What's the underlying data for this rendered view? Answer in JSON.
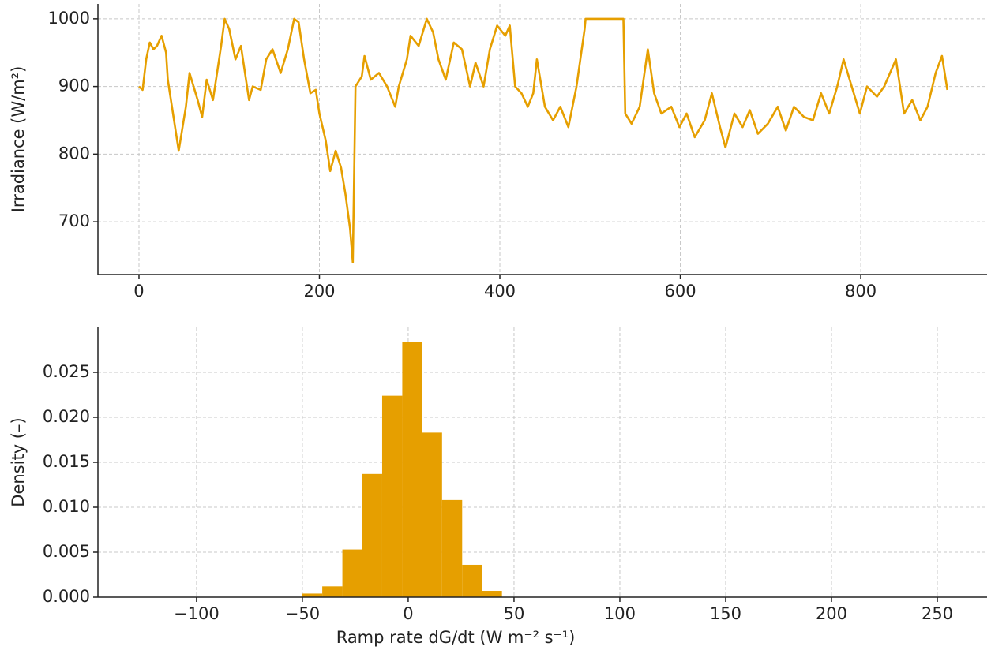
{
  "chart_data": [
    {
      "type": "line",
      "color": "#E69F00",
      "grid": true,
      "ylabel": "Irradiance (W/m²)",
      "xlim": [
        -45.5,
        940
      ],
      "ylim": [
        622,
        1022
      ],
      "xticks": [
        0,
        200,
        400,
        600,
        800
      ],
      "yticks": [
        700,
        800,
        900,
        1000
      ],
      "x": [
        0,
        4,
        8,
        12,
        16,
        20,
        25,
        30,
        32,
        44,
        52,
        56,
        65,
        70,
        75,
        82,
        91,
        95,
        100,
        107,
        113,
        122,
        126,
        135,
        141,
        148,
        157,
        165,
        172,
        177,
        183,
        190,
        196,
        200,
        207,
        212,
        218,
        224,
        229,
        234,
        237,
        240,
        247,
        250,
        257,
        266,
        275,
        284,
        288,
        297,
        301,
        310,
        319,
        326,
        332,
        340,
        349,
        358,
        367,
        373,
        382,
        389,
        397,
        406,
        411,
        417,
        424,
        431,
        437,
        441,
        450,
        459,
        467,
        476,
        485,
        494,
        495,
        537,
        539,
        546,
        555,
        564,
        571,
        579,
        590,
        599,
        607,
        616,
        627,
        635,
        644,
        650,
        660,
        669,
        677,
        686,
        697,
        708,
        717,
        726,
        737,
        747,
        756,
        765,
        774,
        781,
        790,
        799,
        807,
        818,
        826,
        839,
        848,
        857,
        866,
        874,
        883,
        890,
        896
      ],
      "values": [
        900,
        895,
        940,
        965,
        955,
        960,
        975,
        950,
        910,
        805,
        870,
        920,
        880,
        855,
        910,
        880,
        960,
        1000,
        985,
        940,
        960,
        880,
        900,
        895,
        940,
        955,
        920,
        955,
        1000,
        995,
        940,
        890,
        895,
        860,
        820,
        775,
        805,
        780,
        740,
        690,
        640,
        900,
        915,
        945,
        910,
        920,
        900,
        870,
        900,
        940,
        975,
        960,
        1000,
        980,
        940,
        910,
        965,
        955,
        900,
        935,
        900,
        955,
        990,
        975,
        990,
        900,
        890,
        870,
        890,
        940,
        870,
        850,
        870,
        840,
        900,
        985,
        1000,
        1000,
        860,
        845,
        870,
        955,
        890,
        860,
        870,
        840,
        860,
        825,
        850,
        890,
        840,
        810,
        860,
        840,
        865,
        830,
        845,
        870,
        835,
        870,
        855,
        850,
        890,
        860,
        900,
        940,
        900,
        860,
        900,
        885,
        900,
        940,
        860,
        880,
        850,
        870,
        920,
        945,
        895
      ]
    },
    {
      "type": "histogram",
      "color": "#E69F00",
      "grid": true,
      "xlabel": "Ramp rate dG/dt (W m⁻² s⁻¹)",
      "ylabel": "Density (–)",
      "xlim": [
        -146.6,
        273.5
      ],
      "ylim": [
        0,
        0.03
      ],
      "xticks": [
        {
          "value": -100,
          "label": "−100"
        },
        {
          "value": -50,
          "label": "−50"
        },
        0,
        50,
        100,
        150,
        200,
        250
      ],
      "yticks": [
        {
          "value": 0,
          "label": "0.000"
        },
        {
          "value": 0.005,
          "label": "0.005"
        },
        {
          "value": 0.01,
          "label": "0.010"
        },
        {
          "value": 0.015,
          "label": "0.015"
        },
        {
          "value": 0.02,
          "label": "0.020"
        },
        {
          "value": 0.025,
          "label": "0.025"
        }
      ],
      "bins": [
        -50,
        -40.6,
        -31.1,
        -21.7,
        -12.3,
        -2.8,
        6.6,
        16.0,
        25.5,
        34.9,
        44.3
      ],
      "values": [
        0.0004,
        0.0012,
        0.0053,
        0.0137,
        0.0224,
        0.0284,
        0.0183,
        0.0108,
        0.0036,
        0.0007
      ]
    }
  ]
}
